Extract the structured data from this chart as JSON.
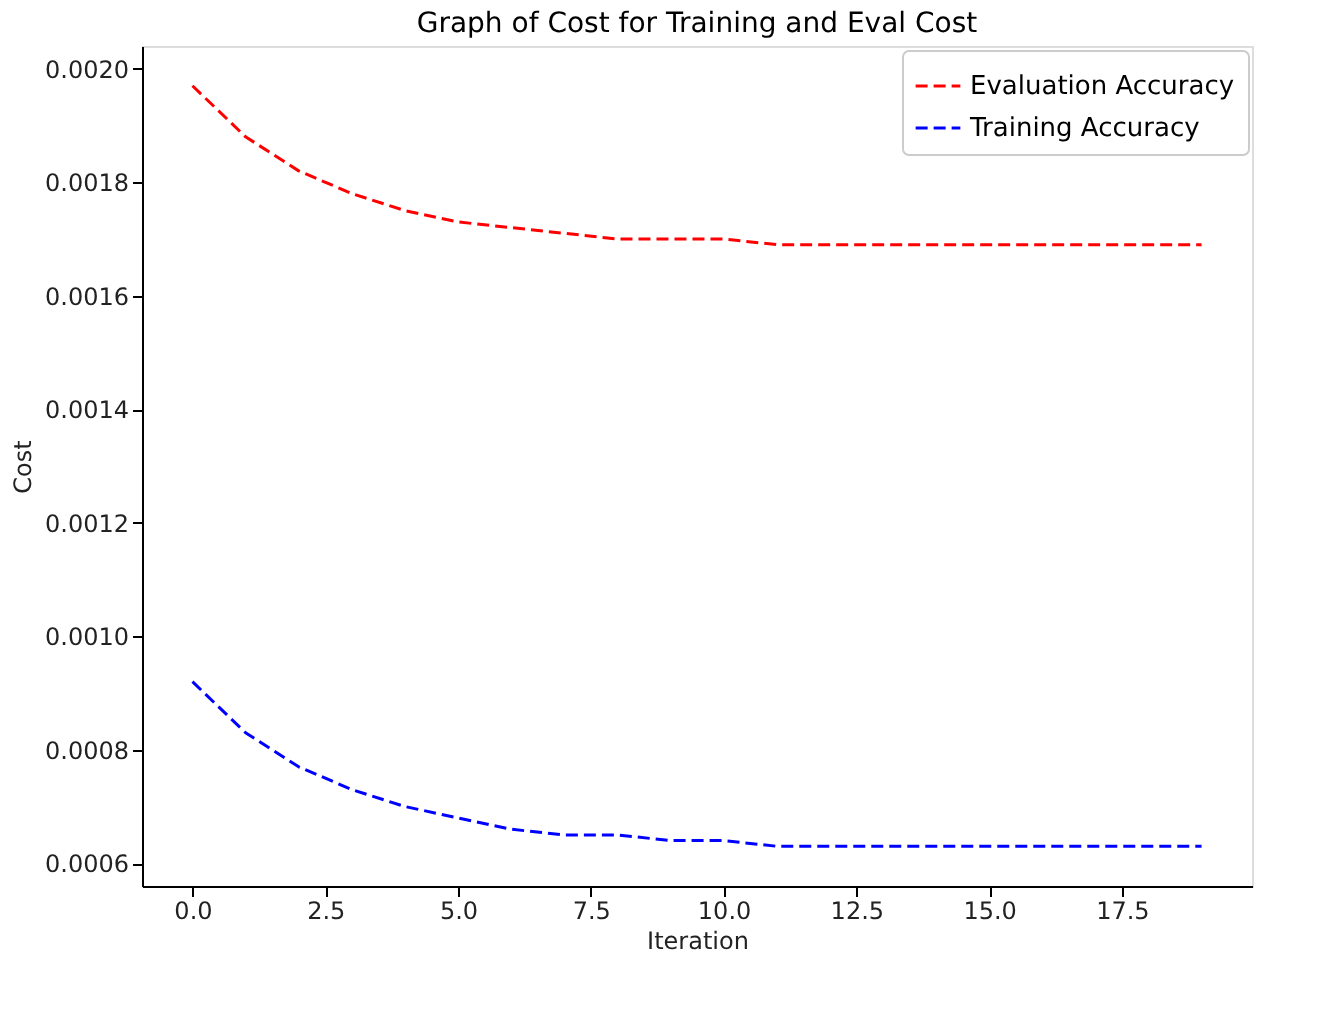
{
  "chart_data": {
    "type": "line",
    "title": "Graph of Cost for Training and Eval Cost",
    "xlabel": "Iteration",
    "ylabel": "Cost",
    "x": [
      0,
      1,
      2,
      3,
      4,
      5,
      6,
      7,
      8,
      9,
      10,
      11,
      12,
      13,
      14,
      15,
      16,
      17,
      18,
      19
    ],
    "series": [
      {
        "name": "Evaluation Accuracy",
        "color": "#ff0000",
        "values": [
          0.00197,
          0.00188,
          0.00182,
          0.00178,
          0.00175,
          0.00173,
          0.00172,
          0.00171,
          0.0017,
          0.0017,
          0.0017,
          0.00169,
          0.00169,
          0.00169,
          0.00169,
          0.00169,
          0.00169,
          0.00169,
          0.00169,
          0.00169
        ]
      },
      {
        "name": "Training Accuracy",
        "color": "#0000ff",
        "values": [
          0.00092,
          0.00083,
          0.00077,
          0.00073,
          0.0007,
          0.00068,
          0.00066,
          0.00065,
          0.00065,
          0.00064,
          0.00064,
          0.00063,
          0.00063,
          0.00063,
          0.00063,
          0.00063,
          0.00063,
          0.00063,
          0.00063,
          0.00063
        ]
      }
    ],
    "xlim": [
      -0.95,
      19.95
    ],
    "xticks": [
      {
        "value": 0,
        "label": "0.0"
      },
      {
        "value": 2.5,
        "label": "2.5"
      },
      {
        "value": 5,
        "label": "5.0"
      },
      {
        "value": 7.5,
        "label": "7.5"
      },
      {
        "value": 10,
        "label": "10.0"
      },
      {
        "value": 12.5,
        "label": "12.5"
      },
      {
        "value": 15,
        "label": "15.0"
      },
      {
        "value": 17.5,
        "label": "17.5"
      }
    ],
    "ylim": [
      0.00056,
      0.00204
    ],
    "yticks": [
      {
        "value": 0.0006,
        "label": "0.0006"
      },
      {
        "value": 0.0008,
        "label": "0.0008"
      },
      {
        "value": 0.001,
        "label": "0.0010"
      },
      {
        "value": 0.0012,
        "label": "0.0012"
      },
      {
        "value": 0.0014,
        "label": "0.0014"
      },
      {
        "value": 0.0016,
        "label": "0.0016"
      },
      {
        "value": 0.0018,
        "label": "0.0018"
      },
      {
        "value": 0.002,
        "label": "0.0020"
      }
    ],
    "grid": false,
    "legend": "top right",
    "line_style": "dashed",
    "marker": "none"
  }
}
